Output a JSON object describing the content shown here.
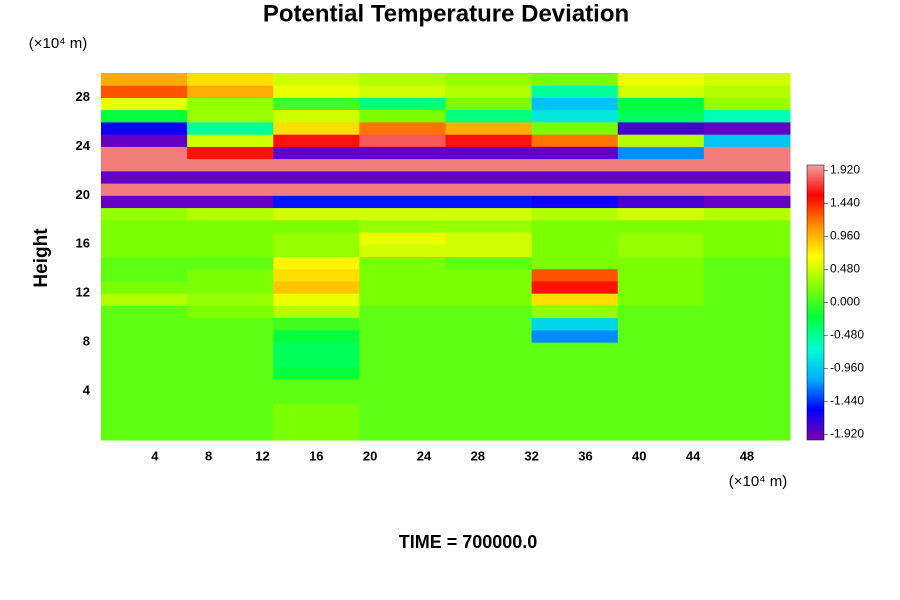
{
  "chart_data": {
    "type": "heatmap",
    "title": "Potential Temperature Deviation",
    "y_unit_label": "(×10⁴ m)",
    "x_unit_label": "(×10⁴ m)",
    "ylabel": "Height",
    "footer": "TIME = 700000.0",
    "xlim": [
      0,
      51.2
    ],
    "ylim": [
      0,
      30
    ],
    "xticks": [
      4,
      8,
      12,
      16,
      20,
      24,
      28,
      32,
      36,
      40,
      44,
      48
    ],
    "yticks": [
      4,
      8,
      12,
      16,
      20,
      24,
      28
    ],
    "clim": [
      -2,
      2
    ],
    "cticks": [
      {
        "value": 1.92,
        "label": "1.920"
      },
      {
        "value": 1.44,
        "label": "1.440"
      },
      {
        "value": 0.96,
        "label": "0.960"
      },
      {
        "value": 0.48,
        "label": "0.480"
      },
      {
        "value": 0,
        "label": "0.000"
      },
      {
        "value": -0.48,
        "label": "-0.480"
      },
      {
        "value": -0.96,
        "label": "-0.960"
      },
      {
        "value": -1.44,
        "label": "-1.440"
      },
      {
        "value": -1.92,
        "label": "-1.920"
      }
    ],
    "colormap": [
      "#8000b0",
      "#0000ff",
      "#00b0ff",
      "#00ffd0",
      "#00ff40",
      "#80ff00",
      "#ffff00",
      "#ff9000",
      "#ff0000",
      "#f0a0a0"
    ],
    "x": [
      3.2,
      9.6,
      16,
      22.4,
      28.8,
      35.2,
      41.6,
      48
    ],
    "y": [
      0.5,
      1.5,
      2.5,
      3.5,
      4.5,
      5.5,
      6.5,
      7.5,
      8.5,
      9.5,
      10.5,
      11.5,
      12.5,
      13.5,
      14.5,
      15.5,
      16.5,
      17.5,
      18.5,
      19.5,
      20.5,
      21.5,
      22.5,
      23.5,
      24.5,
      25.5,
      26.5,
      27.5,
      28.5,
      29.5
    ],
    "z": [
      [
        0.1,
        0.1,
        0.2,
        0.1,
        0.1,
        0.1,
        0.1,
        0.1
      ],
      [
        0.1,
        0.1,
        0.2,
        0.1,
        0.1,
        0.1,
        0.1,
        0.1
      ],
      [
        0.1,
        0.1,
        0.2,
        0.1,
        0.1,
        0.1,
        0.1,
        0.1
      ],
      [
        0.1,
        0.1,
        0.1,
        0.1,
        0.1,
        0.1,
        0.1,
        0.1
      ],
      [
        0.1,
        0.1,
        0.1,
        0.1,
        0.1,
        0.1,
        0.1,
        0.1
      ],
      [
        0.1,
        0.1,
        -0.2,
        0.1,
        0.1,
        0.1,
        0.1,
        0.1
      ],
      [
        0.1,
        0.1,
        -0.3,
        0.1,
        0.1,
        0.1,
        0.1,
        0.1
      ],
      [
        0.1,
        0.1,
        -0.3,
        0.1,
        0.1,
        0.1,
        0.1,
        0.1
      ],
      [
        0.1,
        0.1,
        -0.2,
        0.1,
        0.1,
        -1.2,
        0.1,
        0.1
      ],
      [
        0.1,
        0.1,
        0.0,
        0.1,
        0.1,
        -0.9,
        0.1,
        0.1
      ],
      [
        0.1,
        0.2,
        0.4,
        0.1,
        0.1,
        0.3,
        0.1,
        0.1
      ],
      [
        0.4,
        0.3,
        0.6,
        0.2,
        0.2,
        0.8,
        0.2,
        0.1
      ],
      [
        0.2,
        0.2,
        0.9,
        0.2,
        0.2,
        1.5,
        0.2,
        0.1
      ],
      [
        0.1,
        0.2,
        0.8,
        0.2,
        0.2,
        1.3,
        0.2,
        0.1
      ],
      [
        0.1,
        0.1,
        0.7,
        0.2,
        0.1,
        0.2,
        0.2,
        0.1
      ],
      [
        0.2,
        0.2,
        0.3,
        0.5,
        0.5,
        0.2,
        0.3,
        0.2
      ],
      [
        0.2,
        0.2,
        0.3,
        0.6,
        0.5,
        0.2,
        0.3,
        0.2
      ],
      [
        0.2,
        0.2,
        0.2,
        0.3,
        0.3,
        0.2,
        0.2,
        0.2
      ],
      [
        0.3,
        0.4,
        0.5,
        0.5,
        0.5,
        0.4,
        0.5,
        0.4
      ],
      [
        -1.9,
        -1.9,
        -1.5,
        -1.5,
        -1.5,
        -1.6,
        -1.8,
        -1.9
      ],
      [
        1.9,
        1.9,
        1.9,
        1.9,
        1.9,
        1.9,
        1.9,
        1.9
      ],
      [
        -1.9,
        -1.9,
        -1.9,
        -1.9,
        -1.9,
        -1.9,
        -1.9,
        -1.9
      ],
      [
        1.9,
        1.9,
        1.9,
        1.9,
        1.9,
        1.9,
        1.9,
        1.9
      ],
      [
        1.9,
        1.5,
        -1.9,
        -1.9,
        -1.9,
        -1.9,
        -1.2,
        1.9
      ],
      [
        -1.9,
        0.5,
        1.6,
        1.8,
        1.6,
        1.2,
        0.4,
        -1.0
      ],
      [
        -1.6,
        -0.5,
        0.8,
        1.2,
        1.0,
        0.2,
        -1.8,
        -1.9
      ],
      [
        -0.2,
        0.3,
        0.5,
        0.2,
        -0.4,
        -0.8,
        -0.3,
        -0.6
      ],
      [
        0.6,
        0.3,
        0.0,
        -0.4,
        0.2,
        -1.0,
        -0.2,
        0.3
      ],
      [
        1.3,
        1.0,
        0.6,
        0.5,
        0.4,
        -0.5,
        0.5,
        0.4
      ],
      [
        1.0,
        0.8,
        0.5,
        0.4,
        0.3,
        0.2,
        0.6,
        0.5
      ]
    ]
  }
}
